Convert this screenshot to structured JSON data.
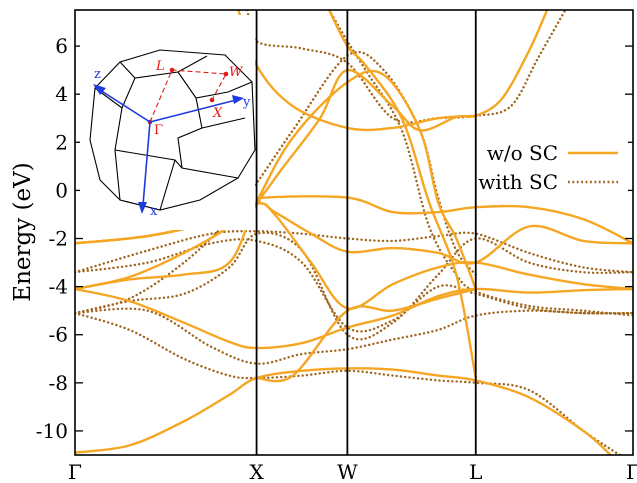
{
  "chart_data": {
    "type": "line",
    "ylabel": "Energy (eV)",
    "xlim": [
      0,
      5
    ],
    "ylim": [
      -11,
      7.5
    ],
    "k_points": [
      {
        "label": "Γ",
        "x": 0
      },
      {
        "label": "X",
        "x": 1.0
      },
      {
        "label": "W",
        "x": 1.5
      },
      {
        "label": "L",
        "x": 2.207
      },
      {
        "label": "Γ",
        "x": 3.073
      }
    ],
    "y_ticks": [
      6,
      4,
      2,
      0,
      -2,
      -4,
      -6,
      -8,
      -10
    ],
    "y_tick_labels": [
      "6",
      "4",
      "2",
      "0",
      "-2",
      "-4",
      "-6",
      "-8",
      "-10"
    ],
    "grid": false,
    "legend_position": "right-middle",
    "colors": {
      "w_o_SC": "#f5a623",
      "with_SC": "#a0661e",
      "frame": "#000000"
    },
    "series": [
      {
        "name": "w/o SC",
        "style": "solid",
        "bands": [
          [
            [
              0,
              -10.9
            ],
            [
              0.3,
              -10.6
            ],
            [
              0.6,
              -9.6
            ],
            [
              0.85,
              -8.5
            ],
            [
              1.0,
              -7.8
            ],
            [
              1.25,
              -7.5
            ],
            [
              1.5,
              -7.4
            ],
            [
              1.75,
              -7.45
            ],
            [
              2.0,
              -7.7
            ],
            [
              2.207,
              -7.9
            ],
            [
              2.5,
              -8.6
            ],
            [
              2.8,
              -10.0
            ],
            [
              2.95,
              -11.0
            ]
          ],
          [
            [
              0,
              -4.1
            ],
            [
              0.3,
              -4.6
            ],
            [
              0.6,
              -5.5
            ],
            [
              0.85,
              -6.3
            ],
            [
              1.0,
              -6.55
            ],
            [
              1.25,
              -6.35
            ],
            [
              1.5,
              -5.7
            ],
            [
              1.75,
              -5.2
            ],
            [
              2.0,
              -4.4
            ],
            [
              2.207,
              -4.1
            ],
            [
              2.5,
              -4.25
            ],
            [
              2.8,
              -4.15
            ],
            [
              3.073,
              -4.1
            ]
          ],
          [
            [
              0,
              -2.2
            ],
            [
              0.4,
              -1.9
            ],
            [
              0.75,
              -1.3
            ],
            [
              1.0,
              -0.55
            ],
            [
              1.1,
              -1.0
            ],
            [
              1.3,
              -3.0
            ],
            [
              1.5,
              -4.9
            ],
            [
              1.75,
              -3.9
            ],
            [
              2.0,
              -3.2
            ],
            [
              2.207,
              -3.0
            ],
            [
              2.5,
              -3.5
            ],
            [
              2.8,
              -3.9
            ],
            [
              3.073,
              -4.1
            ]
          ],
          [
            [
              0,
              -2.2
            ],
            [
              0.4,
              -1.9
            ],
            [
              0.75,
              -1.3
            ],
            [
              1.0,
              -0.55
            ],
            [
              1.1,
              -0.9
            ],
            [
              1.3,
              -1.8
            ],
            [
              1.5,
              -2.55
            ],
            [
              1.75,
              -2.4
            ],
            [
              2.0,
              -2.6
            ],
            [
              2.207,
              -3.0
            ],
            [
              2.5,
              -1.5
            ],
            [
              2.8,
              -2.1
            ],
            [
              3.073,
              -2.2
            ]
          ],
          [
            [
              0,
              -2.2
            ],
            [
              0.4,
              -1.9
            ],
            [
              0.75,
              -1.3
            ],
            [
              1.0,
              -0.55
            ],
            [
              1.05,
              -0.3
            ],
            [
              1.5,
              -0.3
            ],
            [
              1.75,
              -0.9
            ],
            [
              2.0,
              -0.9
            ],
            [
              2.207,
              -0.7
            ],
            [
              2.5,
              -0.7
            ],
            [
              2.8,
              -1.2
            ],
            [
              3.073,
              -2.2
            ]
          ],
          [
            [
              0,
              -4.1
            ],
            [
              0.3,
              -3.6
            ],
            [
              0.6,
              -2.6
            ],
            [
              0.85,
              -1.5
            ],
            [
              1.0,
              -0.5
            ],
            [
              1.15,
              1.0
            ],
            [
              1.35,
              3.0
            ],
            [
              1.5,
              5.0
            ],
            [
              1.75,
              3.5
            ],
            [
              1.9,
              2.5
            ],
            [
              2.1,
              3.05
            ],
            [
              2.207,
              3.1
            ],
            [
              2.35,
              3.8
            ],
            [
              2.5,
              5.8
            ],
            [
              2.6,
              7.5
            ]
          ],
          [
            [
              0,
              -4.1
            ],
            [
              0.3,
              -3.7
            ],
            [
              0.6,
              -3.5
            ],
            [
              0.85,
              -3.0
            ],
            [
              1.0,
              -0.5
            ],
            [
              1.2,
              2.2
            ],
            [
              1.5,
              4.5
            ],
            [
              1.7,
              4.8
            ],
            [
              1.9,
              2.5
            ],
            [
              2.0,
              -0.5
            ],
            [
              2.1,
              -2.0
            ],
            [
              2.207,
              -4.1
            ]
          ],
          [
            [
              0.9,
              7.5
            ],
            [
              1.0,
              5.2
            ],
            [
              1.2,
              3.5
            ],
            [
              1.5,
              2.6
            ],
            [
              1.75,
              2.6
            ],
            [
              2.0,
              3.0
            ],
            [
              2.207,
              3.1
            ]
          ],
          [
            [
              1.4,
              7.5
            ],
            [
              1.5,
              6.0
            ],
            [
              1.6,
              5.2
            ],
            [
              1.8,
              3.0
            ],
            [
              1.95,
              -0.5
            ],
            [
              2.1,
              -3.5
            ],
            [
              2.207,
              -7.8
            ]
          ],
          [
            [
              1.0,
              -7.8
            ],
            [
              1.2,
              -7.7
            ],
            [
              1.5,
              -5.0
            ],
            [
              1.75,
              -5.0
            ],
            [
              2.0,
              -4.5
            ],
            [
              2.207,
              -4.1
            ]
          ]
        ]
      },
      {
        "name": "with SC",
        "style": "dotted",
        "bands": [
          [
            [
              0,
              -5.1
            ],
            [
              0.3,
              -5.8
            ],
            [
              0.6,
              -7.0
            ],
            [
              0.85,
              -7.7
            ],
            [
              1.0,
              -7.8
            ],
            [
              1.25,
              -7.7
            ],
            [
              1.5,
              -7.5
            ],
            [
              1.75,
              -7.7
            ],
            [
              2.0,
              -7.9
            ],
            [
              2.207,
              -8.0
            ],
            [
              2.5,
              -8.3
            ],
            [
              2.8,
              -10.0
            ],
            [
              3.0,
              -11.0
            ]
          ],
          [
            [
              0,
              -5.1
            ],
            [
              0.4,
              -5.0
            ],
            [
              0.75,
              -6.5
            ],
            [
              1.0,
              -7.2
            ],
            [
              1.25,
              -6.8
            ],
            [
              1.5,
              -6.6
            ],
            [
              1.75,
              -6.2
            ],
            [
              2.0,
              -5.8
            ],
            [
              2.207,
              -5.2
            ],
            [
              2.5,
              -5.0
            ],
            [
              2.8,
              -5.1
            ],
            [
              3.073,
              -5.1
            ]
          ],
          [
            [
              0,
              -3.4
            ],
            [
              0.4,
              -3.0
            ],
            [
              0.75,
              -2.2
            ],
            [
              1.0,
              -2.1
            ],
            [
              1.25,
              -3.0
            ],
            [
              1.5,
              -5.7
            ],
            [
              1.75,
              -5.4
            ],
            [
              2.0,
              -4.0
            ],
            [
              2.207,
              -4.3
            ],
            [
              2.5,
              -4.9
            ],
            [
              2.8,
              -5.1
            ],
            [
              3.073,
              -5.1
            ]
          ],
          [
            [
              0,
              -3.4
            ],
            [
              0.4,
              -2.5
            ],
            [
              0.75,
              -1.8
            ],
            [
              1.0,
              -1.7
            ],
            [
              1.25,
              -1.8
            ],
            [
              1.5,
              -2.0
            ],
            [
              1.75,
              -2.1
            ],
            [
              2.0,
              -1.9
            ],
            [
              2.207,
              -1.8
            ],
            [
              2.5,
              -2.6
            ],
            [
              2.8,
              -3.2
            ],
            [
              3.073,
              -3.4
            ]
          ],
          [
            [
              0,
              -5.1
            ],
            [
              0.3,
              -4.5
            ],
            [
              0.6,
              -3.0
            ],
            [
              0.85,
              -1.2
            ],
            [
              1.0,
              0.3
            ],
            [
              1.2,
              2.5
            ],
            [
              1.5,
              5.6
            ],
            [
              1.7,
              5.0
            ],
            [
              1.9,
              2.5
            ],
            [
              2.0,
              -0.3
            ],
            [
              2.1,
              -2.5
            ],
            [
              2.207,
              -3.5
            ]
          ],
          [
            [
              0.95,
              7.5
            ],
            [
              1.0,
              6.2
            ],
            [
              1.25,
              5.9
            ],
            [
              1.5,
              5.3
            ],
            [
              1.75,
              3.0
            ],
            [
              2.0,
              3.0
            ],
            [
              2.207,
              3.1
            ],
            [
              2.4,
              3.5
            ],
            [
              2.55,
              5.5
            ],
            [
              2.7,
              7.5
            ]
          ],
          [
            [
              1.4,
              7.5
            ],
            [
              1.5,
              6.2
            ],
            [
              1.6,
              5.0
            ],
            [
              1.8,
              2.5
            ],
            [
              1.95,
              -1.5
            ],
            [
              2.1,
              -3.5
            ],
            [
              2.207,
              -4.2
            ],
            [
              2.5,
              -4.8
            ],
            [
              2.8,
              -5.0
            ],
            [
              3.073,
              -5.2
            ]
          ],
          [
            [
              0,
              -5.1
            ],
            [
              0.3,
              -4.6
            ],
            [
              0.6,
              -4.3
            ],
            [
              0.85,
              -3.2
            ],
            [
              1.0,
              -1.8
            ],
            [
              1.25,
              -2.5
            ],
            [
              1.5,
              -6.0
            ],
            [
              1.75,
              -5.5
            ],
            [
              2.0,
              -3.5
            ],
            [
              2.207,
              -2.0
            ],
            [
              2.5,
              -3.0
            ],
            [
              2.8,
              -3.4
            ],
            [
              3.073,
              -3.4
            ]
          ]
        ]
      }
    ]
  },
  "inset": {
    "axis_x": "x",
    "axis_y": "y",
    "axis_z": "z",
    "point_gamma": "Γ",
    "point_L": "L",
    "point_W": "W",
    "point_X": "X",
    "axis_color": "#1f3be0",
    "point_color": "#e01818",
    "edge_color": "#000000"
  }
}
